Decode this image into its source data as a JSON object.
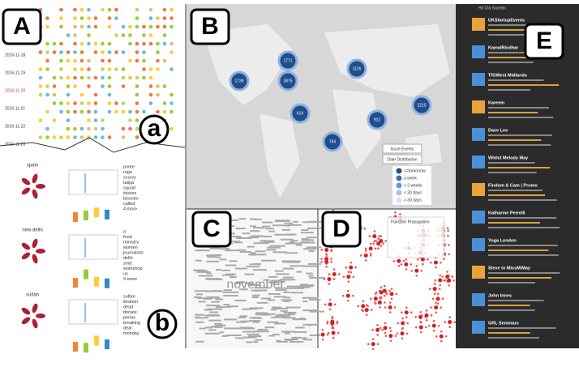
{
  "panels": {
    "A": "A",
    "B": "B",
    "C": "C",
    "D": "D",
    "E": "E",
    "a": "a",
    "b": "b"
  },
  "timeline": {
    "dates": [
      "2016-11-18",
      "2016-11-19",
      "2016-11-20",
      "2016-11-21",
      "2016-11-22",
      "2016-11-23"
    ]
  },
  "topics": [
    {
      "name": "spain",
      "keywords": [
        "ponte",
        "rugo",
        "scurvy",
        "taliga",
        "squad",
        "injures",
        "bissoko",
        "called",
        "4 more"
      ]
    },
    {
      "name": "new delhi",
      "keywords": [
        "a",
        "food",
        "ministry",
        "women",
        "journalists",
        "delhi",
        "seat",
        "workshop",
        "us",
        "3 more"
      ]
    },
    {
      "name": "sultan",
      "keywords": [
        "sultan",
        "ibrahim",
        "dead",
        "donate",
        "perlas",
        "breaking",
        "dear",
        "monday"
      ]
    }
  ],
  "map": {
    "clusters": [
      "1739",
      "3875",
      "1771",
      "1126",
      "912",
      "2210",
      "614",
      "754"
    ],
    "buttons": [
      "Issue Events",
      "Date Distribution"
    ],
    "legend": [
      "<=tomorrow",
      "a week",
      "< 2 weeks",
      "< 30 days",
      "> 30 days"
    ]
  },
  "cloud": {
    "word": "november"
  },
  "network": {
    "legend": "Function Propagation"
  },
  "feed": {
    "header": "Hit Ola Soneltn",
    "tweets": [
      "UKStartupEvents",
      "KamalRiodhar",
      "TfGWest Midlands",
      "Kareem",
      "Dave Lee",
      "Whilst Melody May",
      "Findom & Cam | Promo",
      "Katharine Perrelli",
      "Yoga London",
      "Steve to MissMiMay",
      "John Innes",
      "GRL Seminars"
    ]
  }
}
